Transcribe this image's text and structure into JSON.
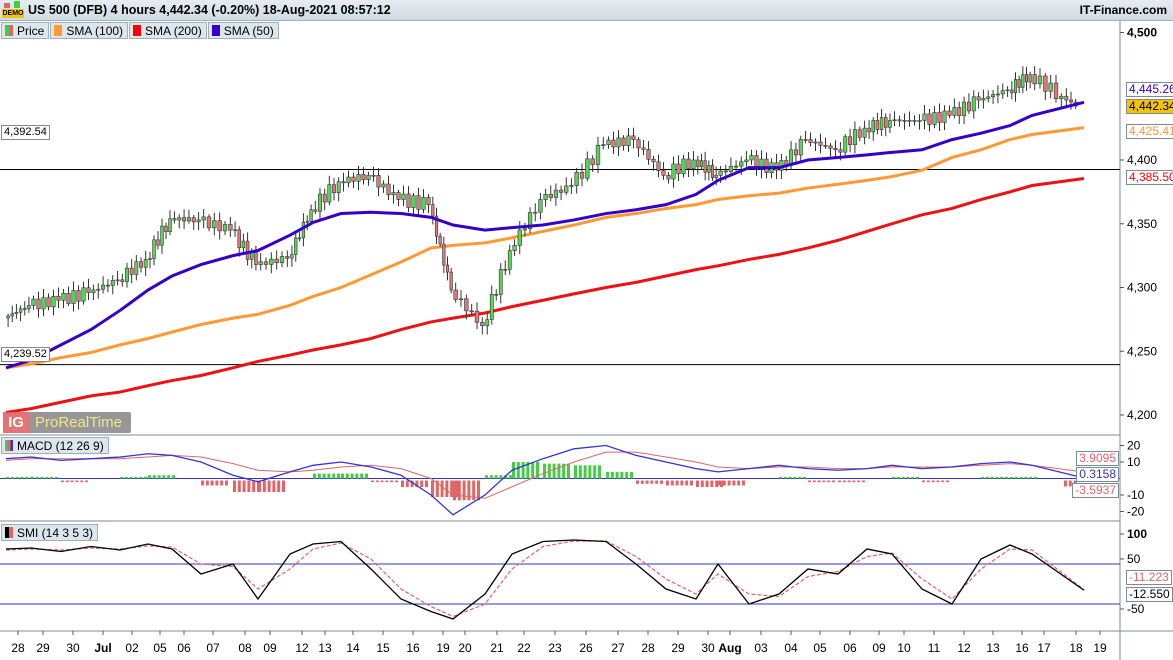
{
  "header": {
    "title": "US 500 (DFB) 4 hours 4,442.34 (-0.20%) 18-Aug-2021 08:57:12",
    "brand": "IT-Finance.com",
    "demo_badge": "DEMO"
  },
  "legend": [
    {
      "label": "Price",
      "color": "#e06565"
    },
    {
      "label": "SMA (100)",
      "color": "#ff9933"
    },
    {
      "label": "SMA (200)",
      "color": "#ff0000"
    },
    {
      "label": "SMA (50)",
      "color": "#3300cc"
    }
  ],
  "logo": {
    "ig": "IG",
    "text": "ProRealTime"
  },
  "price_axis": {
    "ticks": [
      "4,500",
      "4,400",
      "4,350",
      "4,300",
      "4,250",
      "4,200"
    ],
    "tick_values": [
      4500,
      4400,
      4350,
      4300,
      4250,
      4200
    ]
  },
  "price_labels": {
    "sma50": "4,445.26",
    "last": "4,442.34",
    "sma100": "4,425.41",
    "sma200": "4,385.50"
  },
  "levels": [
    {
      "label": "4,392.54",
      "value": 4392.54
    },
    {
      "label": "4,239.52",
      "value": 4239.52
    }
  ],
  "macd": {
    "label": "MACD (12 26 9)",
    "ticks": [
      "20",
      "10",
      "-10",
      "-20"
    ],
    "tick_values": [
      20,
      10,
      -10,
      -20
    ],
    "signal_label": "3.9095",
    "macd_label": "0.3158",
    "hist_label": "-3.5937"
  },
  "smi": {
    "label": "SMI (14 3 5 3)",
    "ticks": [
      "100",
      "50",
      "-50"
    ],
    "tick_values": [
      100,
      50,
      -50
    ],
    "signal_label": "-11.223",
    "value_label": "-12.550"
  },
  "x_axis": {
    "labels": [
      "28",
      "29",
      "30",
      "Jul",
      "02",
      "05",
      "06",
      "07",
      "08",
      "09",
      "12",
      "13",
      "14",
      "15",
      "16",
      "19",
      "20",
      "21",
      "22",
      "23",
      "26",
      "27",
      "28",
      "29",
      "30",
      "Aug",
      "03",
      "04",
      "05",
      "06",
      "09",
      "10",
      "11",
      "12",
      "13",
      "16",
      "17",
      "18",
      "19"
    ]
  },
  "chart_data": {
    "type": "candlestick",
    "title": "US 500 (DFB) 4 hours",
    "days": [
      "Jun 28",
      "Jun 29",
      "Jun 30",
      "Jul 01",
      "Jul 02",
      "Jul 05",
      "Jul 06",
      "Jul 07",
      "Jul 08",
      "Jul 09",
      "Jul 12",
      "Jul 13",
      "Jul 14",
      "Jul 15",
      "Jul 16",
      "Jul 19",
      "Jul 20",
      "Jul 21",
      "Jul 22",
      "Jul 23",
      "Jul 26",
      "Jul 27",
      "Jul 28",
      "Jul 29",
      "Jul 30",
      "Aug 02",
      "Aug 03",
      "Aug 04",
      "Aug 05",
      "Aug 06",
      "Aug 09",
      "Aug 10",
      "Aug 11",
      "Aug 12",
      "Aug 13",
      "Aug 16",
      "Aug 17",
      "Aug 18"
    ],
    "open_start": 4276,
    "close": [
      4286,
      4290,
      4296,
      4306,
      4322,
      4354,
      4353,
      4345,
      4318,
      4323,
      4361,
      4383,
      4388,
      4369,
      4365,
      4298,
      4270,
      4329,
      4369,
      4380,
      4412,
      4416,
      4388,
      4400,
      4388,
      4400,
      4392,
      4416,
      4408,
      4425,
      4431,
      4431,
      4435,
      4447,
      4455,
      4467,
      4450,
      4442.34
    ],
    "sma50": [
      4237,
      4243,
      4255,
      4267,
      4282,
      4298,
      4309,
      4318,
      4325,
      4329,
      4341,
      4351,
      4358,
      4359,
      4358,
      4355,
      4349,
      4345,
      4347,
      4349,
      4353,
      4358,
      4361,
      4365,
      4373,
      4384,
      4394,
      4394,
      4400,
      4402,
      4404,
      4406,
      4408,
      4416,
      4421,
      4427,
      4435,
      4445.26
    ],
    "sma100": [
      4237,
      4240,
      4245,
      4249,
      4255,
      4260,
      4265,
      4271,
      4276,
      4279,
      4286,
      4293,
      4300,
      4310,
      4320,
      4331,
      4333,
      4335,
      4339,
      4344,
      4349,
      4355,
      4358,
      4362,
      4365,
      4369,
      4372,
      4374,
      4378,
      4381,
      4384,
      4387,
      4392,
      4402,
      4408,
      4416,
      4420,
      4425.41
    ],
    "sma200": [
      4202,
      4205,
      4210,
      4215,
      4218,
      4223,
      4227,
      4231,
      4237,
      4242,
      4247,
      4251,
      4255,
      4260,
      4267,
      4273,
      4276,
      4280,
      4285,
      4290,
      4295,
      4300,
      4304,
      4309,
      4314,
      4317,
      4322,
      4326,
      4331,
      4337,
      4344,
      4350,
      4357,
      4362,
      4369,
      4375,
      4380,
      4385.5
    ],
    "macd": [
      12,
      13,
      11,
      12,
      13,
      15,
      14,
      10,
      2,
      -2,
      4,
      8,
      10,
      7,
      2,
      -10,
      -22,
      -10,
      5,
      12,
      18,
      20,
      14,
      10,
      6,
      4,
      6,
      8,
      6,
      5,
      6,
      8,
      6,
      7,
      9,
      10,
      8,
      0.3158
    ],
    "macd_signal": [
      11,
      12,
      12,
      12,
      12,
      13,
      14,
      13,
      9,
      5,
      4,
      5,
      7,
      8,
      6,
      0,
      -10,
      -12,
      -5,
      3,
      10,
      16,
      16,
      13,
      10,
      7,
      6,
      7,
      7,
      6,
      6,
      7,
      7,
      7,
      8,
      9,
      8,
      3.9095
    ],
    "smi": [
      70,
      72,
      65,
      75,
      68,
      80,
      70,
      20,
      40,
      -30,
      60,
      80,
      85,
      30,
      -30,
      -55,
      -70,
      -20,
      60,
      85,
      88,
      85,
      40,
      -10,
      -30,
      40,
      -40,
      -20,
      30,
      20,
      70,
      60,
      -10,
      -40,
      50,
      78,
      60,
      -12.55
    ],
    "smi_signal": [
      68,
      70,
      68,
      72,
      70,
      76,
      74,
      40,
      35,
      -10,
      30,
      70,
      82,
      50,
      -10,
      -45,
      -65,
      -40,
      30,
      75,
      86,
      86,
      55,
      10,
      -20,
      20,
      -20,
      -25,
      15,
      25,
      55,
      62,
      10,
      -30,
      30,
      70,
      68,
      -11.223
    ],
    "smi_levels": [
      40,
      -40
    ],
    "ylim": [
      4190,
      4510
    ]
  }
}
